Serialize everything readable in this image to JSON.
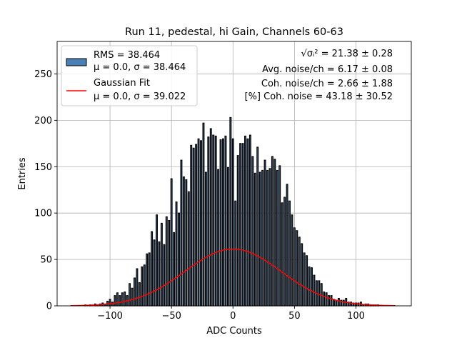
{
  "chart_data": {
    "type": "bar",
    "title": "Run 11, pedestal, hi Gain, Channels 60-63",
    "xlabel": "ADC Counts",
    "ylabel": "Entries",
    "xlim": [
      -143,
      145
    ],
    "ylim": [
      0,
      285
    ],
    "xticks": [
      -100,
      -50,
      0,
      50,
      100
    ],
    "xtick_labels": [
      "−100",
      "−50",
      "0",
      "50",
      "100"
    ],
    "yticks": [
      0,
      50,
      100,
      150,
      200,
      250
    ],
    "ytick_labels": [
      "0",
      "50",
      "100",
      "150",
      "200",
      "250"
    ],
    "grid": true,
    "legend_position": "top-left",
    "bar_width": 1.0,
    "histogram": {
      "name_lines": [
        "RMS = 38.464",
        "μ = 0.0, σ = 38.464"
      ],
      "color": "#4a7fb5",
      "edge_color": "#000000",
      "x": [
        -132,
        -130,
        -128,
        -126,
        -124,
        -122,
        -120,
        -118,
        -116,
        -114,
        -112,
        -110,
        -108,
        -106,
        -104,
        -102,
        -100,
        -98,
        -96,
        -94,
        -92,
        -90,
        -88,
        -86,
        -84,
        -82,
        -80,
        -78,
        -76,
        -74,
        -72,
        -70,
        -68,
        -66,
        -64,
        -62,
        -60,
        -58,
        -56,
        -54,
        -52,
        -50,
        -48,
        -46,
        -44,
        -42,
        -40,
        -38,
        -36,
        -34,
        -32,
        -30,
        -28,
        -26,
        -24,
        -22,
        -20,
        -18,
        -16,
        -14,
        -12,
        -10,
        -8,
        -6,
        -4,
        -2,
        0,
        2,
        4,
        6,
        8,
        10,
        12,
        14,
        16,
        18,
        20,
        22,
        24,
        26,
        28,
        30,
        32,
        34,
        36,
        38,
        40,
        42,
        44,
        46,
        48,
        50,
        52,
        54,
        56,
        58,
        60,
        62,
        64,
        66,
        68,
        70,
        72,
        74,
        76,
        78,
        80,
        82,
        84,
        86,
        88,
        90,
        92,
        94,
        96,
        98,
        100,
        102,
        104,
        106,
        108,
        110,
        112,
        114,
        116,
        118,
        120,
        122,
        124,
        126,
        128,
        130,
        132
      ],
      "values": [
        0,
        0,
        0,
        0,
        0,
        0,
        1,
        0,
        1,
        0,
        2,
        1,
        2,
        3,
        2,
        5,
        7,
        4,
        11,
        14,
        11,
        14,
        15,
        11,
        24,
        19,
        30,
        40,
        25,
        42,
        44,
        56,
        57,
        80,
        71,
        98,
        69,
        89,
        66,
        96,
        92,
        137,
        79,
        112,
        100,
        157,
        139,
        136,
        123,
        173,
        170,
        174,
        180,
        178,
        197,
        144,
        182,
        191,
        184,
        183,
        147,
        179,
        180,
        183,
        149,
        203,
        180,
        113,
        162,
        175,
        175,
        183,
        180,
        184,
        161,
        143,
        171,
        144,
        146,
        157,
        146,
        148,
        161,
        158,
        146,
        151,
        111,
        117,
        131,
        113,
        98,
        84,
        81,
        74,
        67,
        57,
        54,
        42,
        41,
        33,
        27,
        27,
        24,
        15,
        14,
        11,
        11,
        7,
        6,
        8,
        6,
        6,
        8,
        4,
        4,
        3,
        3,
        3,
        4,
        1,
        2,
        2,
        1,
        1,
        1,
        1,
        0,
        0,
        0,
        0,
        0,
        0,
        0
      ]
    },
    "gaussian_fit": {
      "name_lines": [
        "Gaussian Fit",
        "μ = 0.0, σ = 39.022"
      ],
      "color": "#ff0000",
      "mu": 0.0,
      "sigma": 39.022,
      "amplitude": 61.3,
      "x_range": [
        -132,
        132
      ]
    },
    "annotations": {
      "sigma_label": "√σᵢ²",
      "sigma_value": " = 21.38 ± 0.28",
      "avg_noise": "Avg. noise/ch = 6.17 ± 0.08",
      "coh_noise": "Coh. noise/ch = 2.66 ± 1.88",
      "pct_coh_noise": "[%] Coh. noise = 43.18 ± 30.52"
    }
  }
}
